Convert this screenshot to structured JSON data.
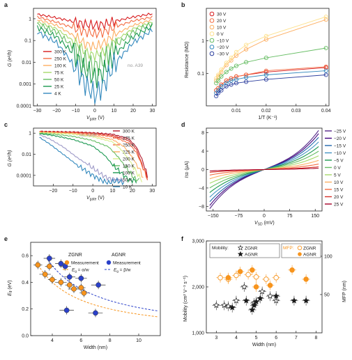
{
  "chart_data": [
    {
      "panel": "a",
      "type": "line",
      "xlabel": "V",
      "xlabel_sub": "gate",
      "xlabel_unit": " (V)",
      "ylabel": "G (e²/h)",
      "xlim": [
        -32,
        32
      ],
      "ylim": [
        0.0001,
        3
      ],
      "yscale": "log",
      "xticks": [
        "-30",
        "-20",
        "-10",
        "0",
        "10",
        "20",
        "30"
      ],
      "yticks": [
        "1",
        "0.1",
        "0.01",
        "0.001",
        "0.0001"
      ],
      "annotation": "no. A39",
      "series": [
        {
          "name": "300 K",
          "color": "#d7191c",
          "x": [
            -30,
            -20,
            -10,
            -5,
            0,
            5,
            10,
            20,
            30
          ],
          "y": [
            1.6,
            1.1,
            0.7,
            0.55,
            0.5,
            0.55,
            0.75,
            1.2,
            1.7
          ]
        },
        {
          "name": "250 K",
          "color": "#f46d43",
          "x": [
            -30,
            -20,
            -10,
            -5,
            0,
            5,
            10,
            20,
            30
          ],
          "y": [
            1.2,
            0.7,
            0.35,
            0.25,
            0.2,
            0.25,
            0.4,
            0.8,
            1.2
          ]
        },
        {
          "name": "100 K",
          "color": "#fdae61",
          "x": [
            -30,
            -20,
            -10,
            -5,
            0,
            5,
            10,
            20,
            30
          ],
          "y": [
            0.9,
            0.5,
            0.15,
            0.07,
            0.05,
            0.08,
            0.18,
            0.5,
            0.9
          ]
        },
        {
          "name": "75 K",
          "color": "#a6d96a",
          "x": [
            -30,
            -20,
            -10,
            -5,
            0,
            5,
            10,
            20,
            30
          ],
          "y": [
            0.7,
            0.35,
            0.08,
            0.03,
            0.02,
            0.03,
            0.09,
            0.35,
            0.7
          ]
        },
        {
          "name": "50 K",
          "color": "#66bd63",
          "x": [
            -30,
            -20,
            -10,
            -5,
            0,
            5,
            10,
            20,
            30
          ],
          "y": [
            0.55,
            0.25,
            0.04,
            0.01,
            0.006,
            0.012,
            0.05,
            0.25,
            0.6
          ]
        },
        {
          "name": "25 K",
          "color": "#1a9850",
          "x": [
            -30,
            -20,
            -10,
            -5,
            0,
            5,
            10,
            20,
            30
          ],
          "y": [
            0.4,
            0.15,
            0.02,
            0.004,
            0.002,
            0.004,
            0.02,
            0.15,
            0.45
          ]
        },
        {
          "name": "4 K",
          "color": "#3288bd",
          "x": [
            -30,
            -20,
            -10,
            -5,
            0,
            5,
            10,
            20,
            30
          ],
          "y": [
            0.25,
            0.08,
            0.006,
            0.001,
            0.0003,
            0.001,
            0.008,
            0.08,
            0.3
          ]
        }
      ]
    },
    {
      "panel": "b",
      "type": "scatter",
      "xlabel": "1/T (K⁻¹)",
      "ylabel": "Resistance (MΩ)",
      "xlim": [
        0,
        0.041
      ],
      "ylim": [
        0.01,
        10
      ],
      "yscale": "log",
      "xticks": [
        "0.01",
        "0.02",
        "0.03",
        "0.04"
      ],
      "yticks": [
        "1",
        "0.1"
      ],
      "legend": "top-left",
      "series": [
        {
          "name": "30 V",
          "color": "#d7191c",
          "x": [
            0.0033,
            0.004,
            0.005,
            0.0067,
            0.0083,
            0.01,
            0.0133,
            0.02,
            0.04
          ],
          "y": [
            0.03,
            0.035,
            0.045,
            0.06,
            0.07,
            0.08,
            0.09,
            0.11,
            0.15
          ]
        },
        {
          "name": "20 V",
          "color": "#f46d43",
          "x": [
            0.0033,
            0.004,
            0.005,
            0.0067,
            0.0083,
            0.01,
            0.0133,
            0.02,
            0.04
          ],
          "y": [
            0.03,
            0.035,
            0.045,
            0.06,
            0.07,
            0.08,
            0.09,
            0.12,
            0.16
          ]
        },
        {
          "name": "10 V",
          "color": "#fdae61",
          "x": [
            0.0033,
            0.004,
            0.005,
            0.0067,
            0.0083,
            0.01,
            0.0133,
            0.02,
            0.04
          ],
          "y": [
            0.06,
            0.08,
            0.11,
            0.18,
            0.25,
            0.35,
            0.55,
            1.1,
            4.5
          ]
        },
        {
          "name": "0 V",
          "color": "#fee08b",
          "x": [
            0.0033,
            0.004,
            0.005,
            0.0067,
            0.0083,
            0.01,
            0.0133,
            0.02,
            0.04
          ],
          "y": [
            0.07,
            0.09,
            0.13,
            0.21,
            0.3,
            0.45,
            0.75,
            1.4,
            5.5
          ]
        },
        {
          "name": "−10 V",
          "color": "#66bd63",
          "x": [
            0.0033,
            0.004,
            0.005,
            0.0067,
            0.0083,
            0.01,
            0.0133,
            0.02,
            0.04
          ],
          "y": [
            0.05,
            0.06,
            0.08,
            0.11,
            0.14,
            0.17,
            0.22,
            0.3,
            0.6
          ]
        },
        {
          "name": "−20 V",
          "color": "#3288bd",
          "x": [
            0.0033,
            0.004,
            0.005,
            0.0067,
            0.0083,
            0.01,
            0.0133,
            0.02,
            0.04
          ],
          "y": [
            0.025,
            0.03,
            0.04,
            0.05,
            0.06,
            0.065,
            0.075,
            0.09,
            0.12
          ]
        },
        {
          "name": "−30 V",
          "color": "#2c3e9e",
          "x": [
            0.0033,
            0.004,
            0.005,
            0.0067,
            0.0083,
            0.01,
            0.0133,
            0.02,
            0.04
          ],
          "y": [
            0.02,
            0.025,
            0.03,
            0.04,
            0.045,
            0.05,
            0.055,
            0.065,
            0.09
          ]
        }
      ]
    },
    {
      "panel": "c",
      "type": "line",
      "xlabel": "V",
      "xlabel_sub": "gate",
      "xlabel_unit": " (V)",
      "ylabel": "G (e²/h)",
      "xlim": [
        -30,
        32
      ],
      "ylim": [
        1e-05,
        3
      ],
      "yscale": "log",
      "xticks": [
        "-20",
        "-10",
        "0",
        "10",
        "20",
        "30"
      ],
      "yticks": [
        "1",
        "0.01",
        "0.0001"
      ],
      "annotation": "no. A187",
      "series": [
        {
          "name": "300 K",
          "color": "#b2182b",
          "x": [
            -27,
            -20,
            -10,
            0,
            10,
            18,
            22,
            25,
            28
          ],
          "y": [
            1.5,
            1.4,
            1.3,
            1.1,
            0.8,
            0.3,
            0.05,
            0.003,
            5e-05
          ]
        },
        {
          "name": "275 K",
          "color": "#d73027",
          "x": [
            -27,
            -20,
            -10,
            0,
            10,
            18,
            22,
            25,
            28
          ],
          "y": [
            1.4,
            1.3,
            1.2,
            1.0,
            0.6,
            0.2,
            0.03,
            0.001,
            4e-05
          ]
        },
        {
          "name": "250 K",
          "color": "#f46d43",
          "x": [
            -27,
            -20,
            -10,
            0,
            10,
            18,
            22,
            25,
            28
          ],
          "y": [
            1.3,
            1.2,
            1.1,
            0.8,
            0.45,
            0.12,
            0.015,
            0.0008,
            3e-05
          ]
        },
        {
          "name": "225 K",
          "color": "#fdae61",
          "x": [
            -27,
            -20,
            -10,
            0,
            10,
            16,
            20,
            24,
            26
          ],
          "y": [
            1.2,
            1.1,
            0.9,
            0.6,
            0.25,
            0.05,
            0.005,
            0.0003,
            3e-05
          ]
        },
        {
          "name": "200 K",
          "color": "#d9ef8b",
          "x": [
            -27,
            -20,
            -10,
            0,
            10,
            15,
            19,
            23,
            25
          ],
          "y": [
            1.1,
            1.0,
            0.8,
            0.45,
            0.15,
            0.02,
            0.002,
            0.0001,
            3e-05
          ]
        },
        {
          "name": "150 K",
          "color": "#66bd63",
          "x": [
            -27,
            -20,
            -10,
            0,
            8,
            13,
            17,
            21,
            24
          ],
          "y": [
            1.0,
            0.8,
            0.5,
            0.2,
            0.05,
            0.005,
            0.0005,
            5e-05,
            3e-05
          ]
        },
        {
          "name": "100 K",
          "color": "#1a9850",
          "x": [
            -27,
            -20,
            -10,
            0,
            6,
            10,
            14,
            18,
            22
          ],
          "y": [
            0.9,
            0.6,
            0.25,
            0.06,
            0.008,
            0.001,
            0.0002,
            4e-05,
            3e-05
          ]
        },
        {
          "name": "50 K",
          "color": "#9e9ac8",
          "x": [
            -27,
            -22,
            -15,
            -8,
            0,
            5,
            8,
            12,
            16
          ],
          "y": [
            0.7,
            0.3,
            0.05,
            0.005,
            0.0005,
            0.0001,
            5e-05,
            4e-05,
            3e-05
          ]
        },
        {
          "name": "10 K",
          "color": "#3288bd",
          "x": [
            -27,
            -22,
            -15,
            -8,
            0,
            5,
            8,
            12,
            16
          ],
          "y": [
            0.4,
            0.1,
            0.01,
            0.001,
            0.0001,
            3e-05,
            2e-05,
            3e-05,
            2e-05
          ]
        }
      ]
    },
    {
      "panel": "d",
      "type": "line",
      "xlabel": "V",
      "xlabel_sub": "SD",
      "xlabel_unit": " (mV)",
      "ylabel": "I",
      "ylabel_sub": "SD",
      "ylabel_unit": " (μA)",
      "xlim": [
        -170,
        170
      ],
      "ylim": [
        -9,
        9
      ],
      "xticks": [
        "-150",
        "-75",
        "0",
        "75",
        "150"
      ],
      "yticks": [
        "8",
        "4",
        "0",
        "-4",
        "-8"
      ],
      "series": [
        {
          "name": "−25 V",
          "color": "#542788",
          "slope_end": 8.5
        },
        {
          "name": "−20 V",
          "color": "#3f007d",
          "slope_end": 7.8
        },
        {
          "name": "−15 V",
          "color": "#2166ac",
          "slope_end": 7.0
        },
        {
          "name": "−10 V",
          "color": "#4393c3",
          "slope_end": 6.0
        },
        {
          "name": "−5 V",
          "color": "#1a9850",
          "slope_end": 5.0
        },
        {
          "name": "0 V",
          "color": "#66bd63",
          "slope_end": 4.0
        },
        {
          "name": "5 V",
          "color": "#a6d96a",
          "slope_end": 3.0
        },
        {
          "name": "10 V",
          "color": "#fdae61",
          "slope_end": 2.0
        },
        {
          "name": "15 V",
          "color": "#f46d43",
          "slope_end": 1.2
        },
        {
          "name": "20 V",
          "color": "#d73027",
          "slope_end": 0.6
        },
        {
          "name": "25 V",
          "color": "#a50026",
          "slope_end": 0.3
        }
      ]
    },
    {
      "panel": "e",
      "type": "scatter",
      "xlabel": "Width (nm)",
      "ylabel": "E",
      "ylabel_sub": "g",
      "ylabel_unit": " (eV)",
      "xlim": [
        2.5,
        11.5
      ],
      "ylim": [
        0.0,
        0.7
      ],
      "xticks": [
        "4",
        "6",
        "8",
        "10"
      ],
      "yticks": [
        "0.6",
        "0.4",
        "0.2",
        "0.0"
      ],
      "legend_headers": [
        "ZGNR",
        "AGNR"
      ],
      "legend_entries": [
        "Measurement",
        "Measurement"
      ],
      "fit_labels": [
        "E",
        "E"
      ],
      "fit_formulas": [
        " = α/w",
        " = β/w"
      ],
      "series": [
        {
          "name": "ZGNR",
          "color": "#f7941d",
          "x": [
            3.0,
            3.5,
            3.8,
            4.0,
            4.6,
            5.2,
            5.5,
            6.0,
            6.2
          ],
          "y": [
            0.53,
            0.46,
            0.52,
            0.42,
            0.4,
            0.38,
            0.35,
            0.36,
            0.32
          ],
          "xerr": [
            0.3,
            0.4,
            0.3,
            0.3,
            0.4,
            0.3,
            0.4,
            0.3,
            0.3
          ]
        },
        {
          "name": "AGNR",
          "color": "#2a40c9",
          "x": [
            3.8,
            4.6,
            4.9,
            5.2,
            6.0,
            7.2,
            5.0,
            7.0
          ],
          "y": [
            0.58,
            0.54,
            0.52,
            0.44,
            0.43,
            0.38,
            0.19,
            0.17
          ],
          "xerr": [
            0.4,
            0.4,
            0.4,
            0.4,
            0.4,
            0.5,
            0.5,
            0.5
          ]
        }
      ]
    },
    {
      "panel": "f",
      "type": "scatter",
      "xlabel": "Width (nm)",
      "ylabel": "Mobility (cm² V⁻¹ s⁻¹)",
      "ylabel2": "MFP (nm)",
      "xlim": [
        2.5,
        8.3
      ],
      "ylim": [
        1000,
        3000
      ],
      "ylim2": [
        0,
        120
      ],
      "xticks": [
        "3",
        "4",
        "5",
        "6",
        "7",
        "8"
      ],
      "yticks": [
        "3,000",
        "2,000",
        "1,000"
      ],
      "yticks2": [
        "100",
        "50"
      ],
      "legend_mobility": {
        "title": "Mobility:",
        "entries": [
          "ZGNR",
          "AGNR"
        ]
      },
      "legend_mfp": {
        "title": "MFP:",
        "entries": [
          "ZGNR",
          "AGNR"
        ]
      },
      "series": [
        {
          "name": "Mobility ZGNR",
          "color": "#222222",
          "x": [
            3.0,
            3.4,
            3.6,
            4.0,
            4.4,
            4.9,
            5.3,
            5.7,
            6.0
          ],
          "y": [
            1600,
            1600,
            1580,
            1700,
            2000,
            1650,
            1900,
            1800,
            1700
          ]
        },
        {
          "name": "Mobility AGNR",
          "color": "#222222",
          "x": [
            3.8,
            4.5,
            4.8,
            4.9,
            5.0,
            5.2,
            6.0,
            6.9,
            7.5
          ],
          "y": [
            1550,
            1700,
            1500,
            1600,
            1680,
            1750,
            1800,
            1700,
            1700
          ]
        },
        {
          "name": "MFP ZGNR",
          "color": "#f7941d",
          "x": [
            3.2,
            3.6,
            4.0,
            4.6,
            5.0,
            5.5,
            6.0
          ],
          "y": [
            72,
            70,
            75,
            76,
            73,
            70,
            72
          ]
        },
        {
          "name": "MFP AGNR",
          "color": "#f7941d",
          "x": [
            3.6,
            4.2,
            4.8,
            5.0,
            5.7,
            6.8,
            7.5
          ],
          "y": [
            72,
            80,
            82,
            60,
            62,
            82,
            70
          ]
        }
      ]
    }
  ]
}
